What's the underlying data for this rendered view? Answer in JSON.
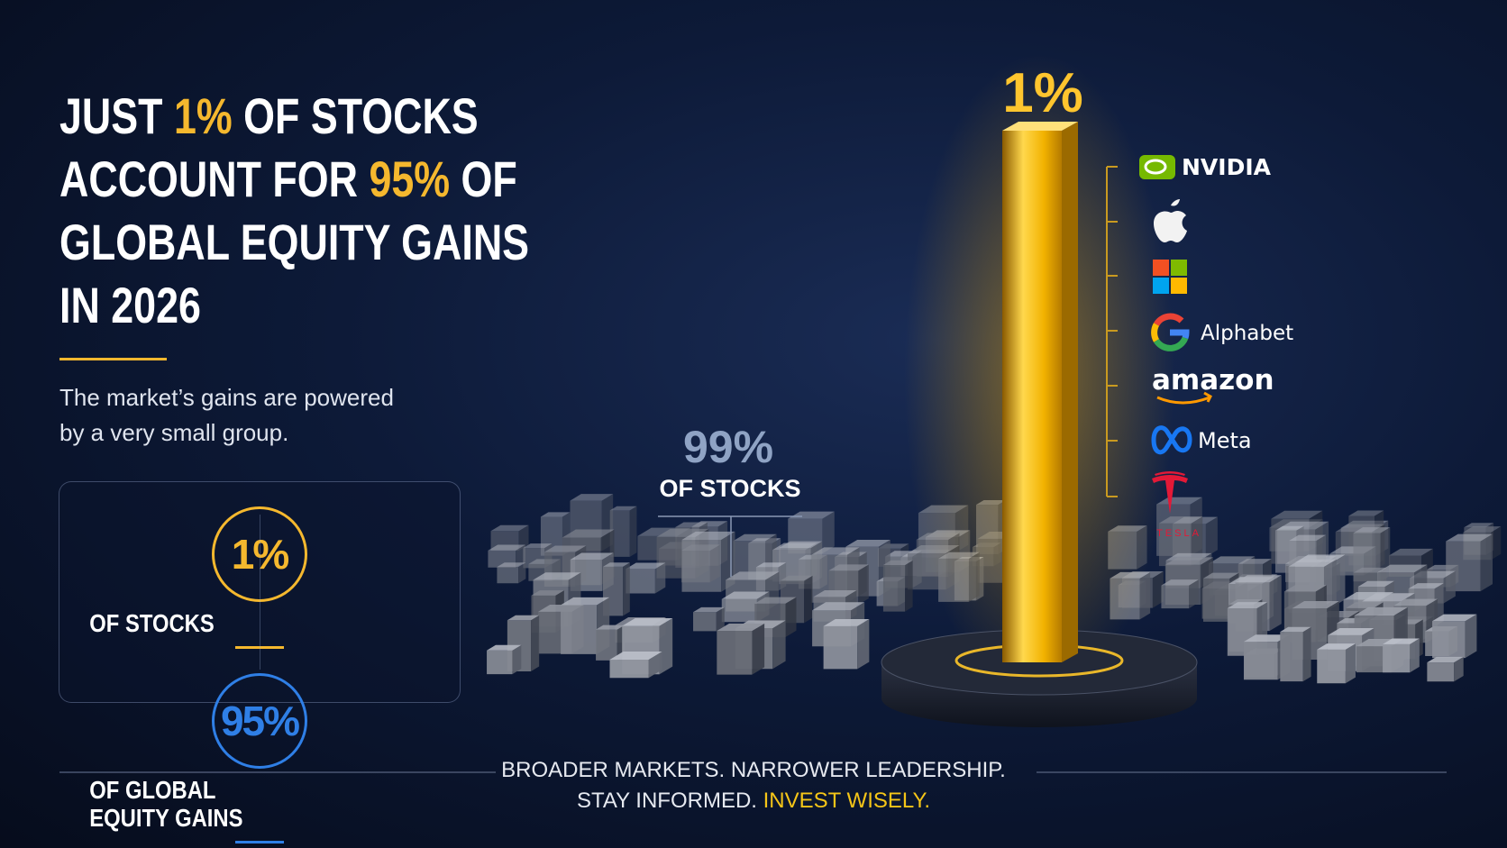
{
  "title": {
    "lines": [
      [
        {
          "text": "JUST "
        },
        {
          "text": "1%",
          "highlight": true
        },
        {
          "text": " OF STOCKS"
        }
      ],
      [
        {
          "text": "ACCOUNT FOR "
        },
        {
          "text": "95%",
          "highlight": true
        },
        {
          "text": " OF"
        }
      ],
      [
        {
          "text": "GLOBAL EQUITY GAINS"
        }
      ],
      [
        {
          "text": "IN 2026"
        }
      ]
    ],
    "highlight_color": "#f5b82e"
  },
  "subtitle": {
    "lines": [
      "The market’s gains are powered",
      "by a very small group."
    ]
  },
  "stats": [
    {
      "value": "1%",
      "label_lines": [
        "OF STOCKS"
      ],
      "color": "#f5b82e"
    },
    {
      "value": "95%",
      "label_lines": [
        "OF GLOBAL",
        "EQUITY GAINS"
      ],
      "color": "#2f7fe6"
    }
  ],
  "chart": {
    "rest_value": "99%",
    "rest_label": "OF STOCKS",
    "top_value": "1%"
  },
  "companies": {
    "nvidia": "NVIDIA",
    "alphabet": "Alphabet",
    "amazon": "amazon",
    "meta": "Meta",
    "tesla": "TESLA"
  },
  "footer": {
    "line1": "BROADER MARKETS. NARROWER LEADERSHIP.",
    "line2": [
      {
        "text": "STAY INFORMED. "
      },
      {
        "text": "INVEST WISELY.",
        "highlight": true
      }
    ],
    "highlight_color": "#f5c518"
  }
}
